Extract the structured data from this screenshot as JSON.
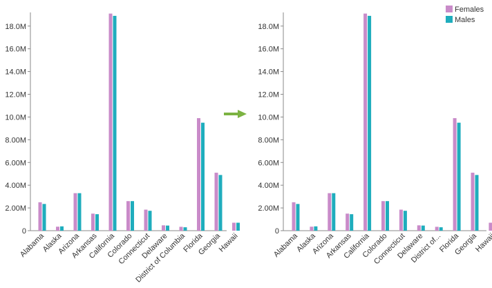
{
  "colors": {
    "females": "#C98BC9",
    "males": "#1FADBD",
    "arrow": "#7CB342"
  },
  "arrow_icon": "arrow-right-icon",
  "chart_data": [
    {
      "type": "bar",
      "categories": [
        "Alabama",
        "Alaska",
        "Arizona",
        "Arkansas",
        "California",
        "Colorado",
        "Connecticut",
        "Delaware",
        "District of Columbia",
        "Florida",
        "Georgia",
        "Hawaii"
      ],
      "series": [
        {
          "name": "Females",
          "values": [
            2.5,
            0.35,
            3.3,
            1.5,
            19.1,
            2.6,
            1.85,
            0.47,
            0.34,
            9.9,
            5.1,
            0.7
          ]
        },
        {
          "name": "Males",
          "values": [
            2.35,
            0.38,
            3.3,
            1.45,
            18.9,
            2.6,
            1.75,
            0.45,
            0.3,
            9.5,
            4.9,
            0.7
          ]
        }
      ],
      "y_ticks": [
        "0",
        "2.00M",
        "4.00M",
        "6.00M",
        "8.00M",
        "10.0M",
        "12.0M",
        "14.0M",
        "16.0M",
        "18.0M"
      ],
      "y_unit": "millions",
      "ylim": [
        0,
        19.2
      ],
      "legend": "none"
    },
    {
      "type": "bar",
      "categories": [
        "Alabama",
        "Alaska",
        "Arizona",
        "Arkansas",
        "California",
        "Colorado",
        "Connecticut",
        "Delaware",
        "District of...",
        "Florida",
        "Georgia",
        "Hawaii"
      ],
      "series": [
        {
          "name": "Females",
          "values": [
            2.5,
            0.35,
            3.3,
            1.5,
            19.1,
            2.6,
            1.85,
            0.47,
            0.34,
            9.9,
            5.1,
            0.7
          ]
        },
        {
          "name": "Males",
          "values": [
            2.35,
            0.38,
            3.3,
            1.45,
            18.9,
            2.6,
            1.75,
            0.45,
            0.3,
            9.5,
            4.9,
            0.7
          ]
        }
      ],
      "y_ticks": [
        "0",
        "2.00M",
        "4.00M",
        "6.00M",
        "8.00M",
        "10.0M",
        "12.0M",
        "14.0M",
        "16.0M",
        "18.0M"
      ],
      "y_unit": "millions",
      "ylim": [
        0,
        19.2
      ],
      "legend": "top-right"
    }
  ]
}
